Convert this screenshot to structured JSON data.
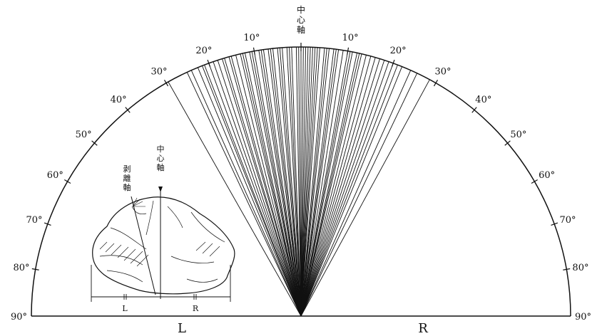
{
  "protractor": {
    "degree_labels_left": [
      "10°",
      "20°",
      "30°",
      "40°",
      "50°",
      "60°",
      "70°",
      "80°",
      "90°"
    ],
    "degree_labels_right": [
      "10°",
      "20°",
      "30°",
      "40°",
      "50°",
      "60°",
      "70°",
      "80°",
      "90°"
    ],
    "center_axis_label": "中\n心\n軸",
    "side_left": "L",
    "side_right": "R"
  },
  "fan_line_angles_deg": [
    -29.5,
    -25,
    -24,
    -22.5,
    -21.5,
    -21,
    -20,
    -19,
    -18,
    -17,
    -16.5,
    -15.5,
    -15,
    -14,
    -13,
    -12.5,
    -12,
    -11,
    -10.5,
    -10,
    -9,
    -8.5,
    -8,
    -7,
    -6.5,
    -6,
    -5,
    -4.5,
    -4,
    -3,
    -2.5,
    -2,
    -1,
    -0.5,
    0,
    0.5,
    1,
    1.5,
    2,
    2.5,
    3,
    3.5,
    4,
    5,
    5.5,
    6,
    7,
    7.5,
    8,
    9,
    10,
    10.5,
    11,
    12,
    12.5,
    13,
    14,
    15,
    16,
    17,
    18,
    19,
    20,
    21,
    22,
    24,
    25.5,
    28.5
  ],
  "inset": {
    "flake_axis_label": "剥\n離\n軸",
    "center_axis_label": "中\n心\n軸",
    "side_left": "L",
    "side_right": "R"
  }
}
